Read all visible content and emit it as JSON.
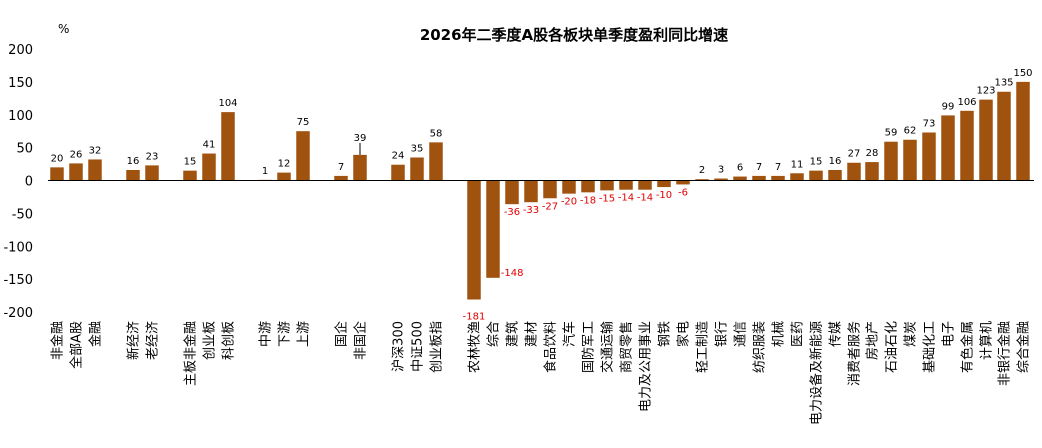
{
  "chart_data": {
    "type": "bar",
    "title": "2026年二季度A股各板块单季度盈利同比增速",
    "unit_label": "%",
    "ylim": [
      -200,
      200
    ],
    "yticks": [
      -200,
      -150,
      -100,
      -50,
      0,
      50,
      100,
      150,
      200
    ],
    "grid": false,
    "legend": "none",
    "colors": {
      "bar": "#a0520f",
      "positive_label": "#000000",
      "negative_label": "#e00000"
    },
    "groups": [
      {
        "categories": [
          "非金融",
          "全部A股",
          "金融"
        ],
        "values": [
          20,
          26,
          32
        ]
      },
      {
        "categories": [
          "新经济",
          "老经济"
        ],
        "values": [
          16,
          23
        ]
      },
      {
        "categories": [
          "主板非金融",
          "创业板",
          "科创板"
        ],
        "values": [
          15,
          41,
          104
        ]
      },
      {
        "categories": [
          "中游",
          "下游",
          "上游"
        ],
        "values": [
          1,
          12,
          75
        ]
      },
      {
        "categories": [
          "国企",
          "非国企"
        ],
        "values": [
          7,
          39
        ]
      },
      {
        "categories": [
          "沪深300",
          "中证500",
          "创业板指"
        ],
        "values": [
          24,
          35,
          58
        ]
      },
      {
        "categories": [
          "农林牧渔",
          "综合",
          "建筑",
          "建材",
          "食品饮料",
          "汽车",
          "国防军工",
          "交通运输",
          "商贸零售",
          "电力及公用事业",
          "钢铁",
          "家电",
          "轻工制造",
          "银行",
          "通信",
          "纺织服装",
          "机械",
          "医药",
          "电力设备及新能源",
          "传媒",
          "消费者服务",
          "房地产",
          "石油石化",
          "煤炭",
          "基础化工",
          "电子",
          "有色金属",
          "计算机",
          "非银行金融",
          "综合金融"
        ],
        "values": [
          -181,
          -148,
          -36,
          -33,
          -27,
          -20,
          -18,
          -15,
          -14,
          -14,
          -10,
          -6,
          2,
          3,
          6,
          7,
          7,
          11,
          15,
          16,
          27,
          28,
          59,
          62,
          73,
          99,
          106,
          123,
          135,
          150
        ]
      }
    ]
  }
}
